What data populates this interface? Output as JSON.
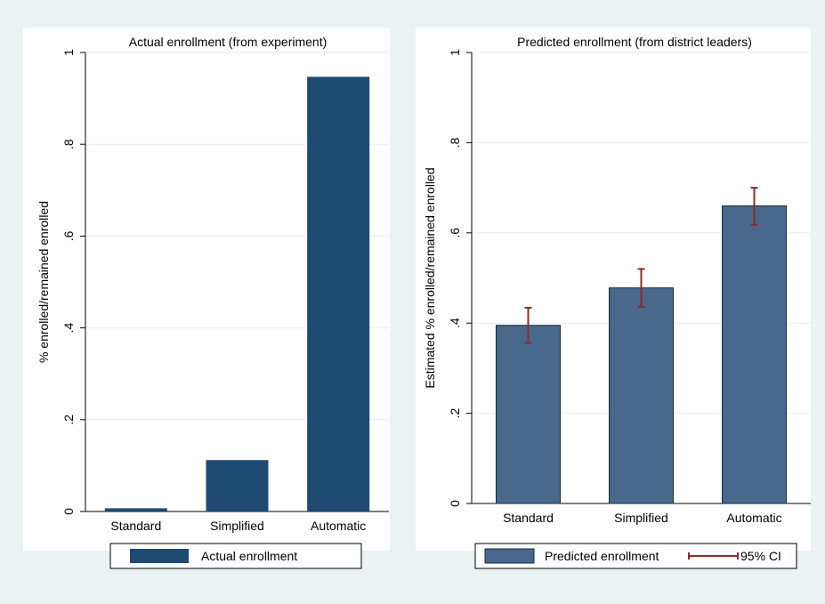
{
  "chart_data": [
    {
      "type": "bar",
      "title": "Actual enrollment (from experiment)",
      "xlabel": "",
      "ylabel": "% enrolled/remained enrolled",
      "categories": [
        "Standard",
        "Simplified",
        "Automatic"
      ],
      "series": [
        {
          "name": "Actual enrollment",
          "values": [
            0.007,
            0.112,
            0.947
          ],
          "color": "#1f4a73"
        }
      ],
      "ylim": [
        0,
        1
      ],
      "yticks": [
        0,
        0.2,
        0.4,
        0.6,
        0.8,
        1
      ],
      "ytick_labels": [
        "0",
        ".2",
        ".4",
        ".6",
        ".8",
        "1"
      ],
      "grid": true,
      "legend": {
        "position": "bottom",
        "entries": [
          "Actual enrollment"
        ]
      }
    },
    {
      "type": "bar",
      "title": "Predicted enrollment (from district leaders)",
      "xlabel": "",
      "ylabel": "Estimated % enrolled/remained enrolled",
      "categories": [
        "Standard",
        "Simplified",
        "Automatic"
      ],
      "series": [
        {
          "name": "Predicted enrollment",
          "values": [
            0.395,
            0.478,
            0.66
          ],
          "ci_low": [
            0.356,
            0.436,
            0.618
          ],
          "ci_high": [
            0.434,
            0.52,
            0.7
          ],
          "color": "#48698c",
          "ci_color": "#8b2b2b"
        }
      ],
      "ylim": [
        0,
        1
      ],
      "yticks": [
        0,
        0.2,
        0.4,
        0.6,
        0.8,
        1
      ],
      "ytick_labels": [
        "0",
        ".2",
        ".4",
        ".6",
        ".8",
        "1"
      ],
      "grid": true,
      "legend": {
        "position": "bottom",
        "entries": [
          "Predicted enrollment",
          "95% CI"
        ]
      }
    }
  ]
}
